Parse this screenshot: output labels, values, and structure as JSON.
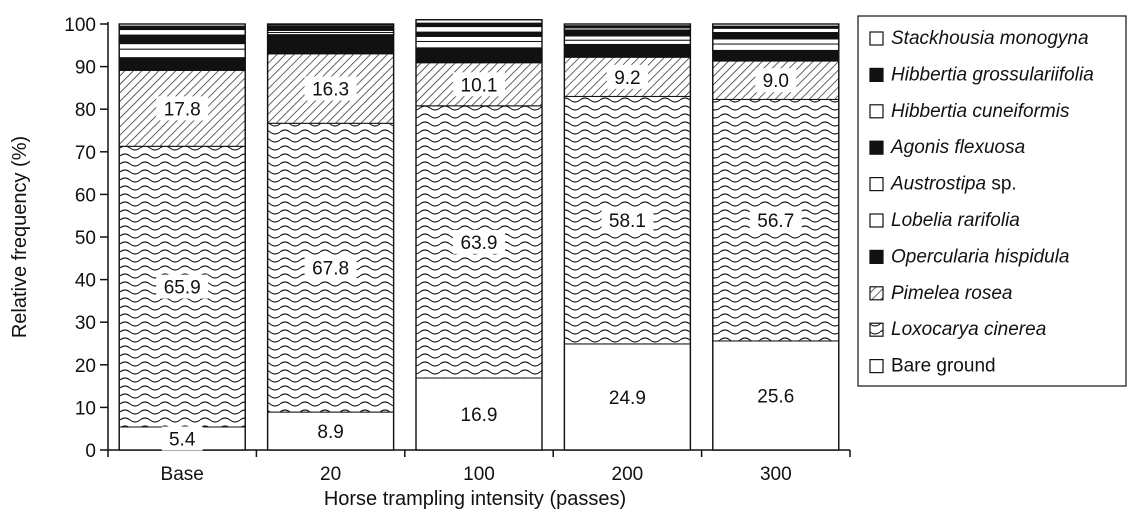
{
  "chart_data": {
    "type": "bar",
    "stacked": true,
    "xlabel": "Horse trampling intensity (passes)",
    "ylabel": "Relative frequency (%)",
    "ylim": [
      0,
      100
    ],
    "yticks": [
      0,
      10,
      20,
      30,
      40,
      50,
      60,
      70,
      80,
      90,
      100
    ],
    "categories": [
      "Base",
      "20",
      "100",
      "200",
      "300"
    ],
    "series": [
      {
        "name": "Bare ground",
        "italic_part": "",
        "plain_part": "Bare ground",
        "pattern": "white",
        "values": [
          5.4,
          8.9,
          16.9,
          24.9,
          25.6
        ],
        "labels": [
          "5.4",
          "8.9",
          "16.9",
          "24.9",
          "25.6"
        ]
      },
      {
        "name": "Loxocarya cinerea",
        "italic_part": "Loxocarya cinerea",
        "plain_part": "",
        "pattern": "wavy",
        "values": [
          65.9,
          67.8,
          63.9,
          58.1,
          56.7
        ],
        "labels": [
          "65.9",
          "67.8",
          "63.9",
          "58.1",
          "56.7"
        ]
      },
      {
        "name": "Pimelea rosea",
        "italic_part": "Pimelea rosea",
        "plain_part": "",
        "pattern": "hatch",
        "values": [
          17.8,
          16.3,
          10.1,
          9.2,
          9.0
        ],
        "labels": [
          "17.8",
          "16.3",
          "10.1",
          "9.2",
          "9.0"
        ]
      },
      {
        "name": "Opercularia hispidula",
        "italic_part": "Opercularia hispidula",
        "plain_part": "",
        "pattern": "black",
        "values": [
          3.0,
          4.5,
          3.5,
          3.0,
          2.5
        ],
        "labels": []
      },
      {
        "name": "Lobelia rarifolia",
        "italic_part": "Lobelia rarifolia",
        "plain_part": "",
        "pattern": "white",
        "values": [
          2.0,
          0.5,
          1.5,
          1.0,
          1.5
        ],
        "labels": []
      },
      {
        "name": "Austrostipa sp.",
        "italic_part": "Austrostipa",
        "plain_part": " sp.",
        "pattern": "white",
        "values": [
          1.3,
          0.5,
          1.2,
          1.0,
          1.2
        ],
        "labels": []
      },
      {
        "name": "Agonis flexuosa",
        "italic_part": "Agonis flexuosa",
        "plain_part": "",
        "pattern": "black",
        "values": [
          2.0,
          1.0,
          1.0,
          1.4,
          1.5
        ],
        "labels": []
      },
      {
        "name": "Hibbertia cuneiformis",
        "italic_part": "Hibbertia cuneiformis",
        "plain_part": "",
        "pattern": "white",
        "values": [
          1.3,
          0.3,
          1.3,
          0.5,
          1.0
        ],
        "labels": []
      },
      {
        "name": "Hibbertia grossulariifolia",
        "italic_part": "Hibbertia grossulariifolia",
        "plain_part": "",
        "pattern": "black",
        "values": [
          0.8,
          0.2,
          0.8,
          0.5,
          0.5
        ],
        "labels": []
      },
      {
        "name": "Stackhousia monogyna",
        "italic_part": "Stackhousia monogyna",
        "plain_part": "",
        "pattern": "white",
        "values": [
          0.5,
          0.0,
          0.8,
          0.4,
          0.5
        ],
        "labels": []
      }
    ],
    "legend": {
      "position": "right",
      "order": [
        "Stackhousia monogyna",
        "Hibbertia grossulariifolia",
        "Hibbertia cuneiformis",
        "Agonis flexuosa",
        "Austrostipa sp.",
        "Lobelia rarifolia",
        "Opercularia hispidula",
        "Pimelea rosea",
        "Loxocarya cinerea",
        "Bare ground"
      ]
    },
    "grid": false
  }
}
